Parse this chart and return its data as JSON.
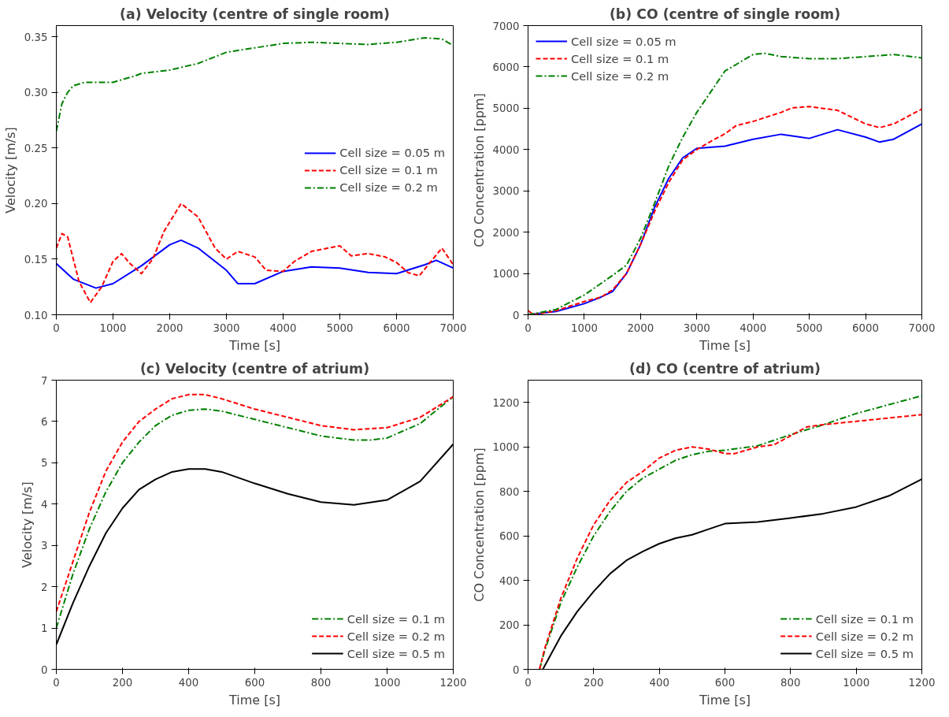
{
  "chart_data": [
    {
      "type": "line",
      "title": "(a) Velocity (centre of single room)",
      "xlabel": "Time [s]",
      "ylabel": "Velocity [m/s]",
      "xlim": [
        0,
        7000
      ],
      "ylim": [
        0.1,
        0.36
      ],
      "xticks": [
        0,
        1000,
        2000,
        3000,
        4000,
        5000,
        6000,
        7000
      ],
      "yticks": [
        {
          "value": 0.1,
          "label": "0.10"
        },
        {
          "value": 0.15,
          "label": "0.15"
        },
        {
          "value": 0.2,
          "label": "0.20"
        },
        {
          "value": 0.25,
          "label": "0.25"
        },
        {
          "value": 0.3,
          "label": "0.30"
        },
        {
          "value": 0.35,
          "label": "0.35"
        }
      ],
      "grid": false,
      "legend": "right",
      "marker": "none",
      "series": [
        {
          "name": "Cell size = 0.05 m",
          "color": "#0000ff",
          "line_style": "solid",
          "x": [
            0,
            300,
            700,
            1000,
            1500,
            2000,
            2200,
            2500,
            3000,
            3200,
            3500,
            4000,
            4500,
            5000,
            5500,
            6000,
            6500,
            6700,
            7000
          ],
          "values": [
            0.146,
            0.132,
            0.124,
            0.128,
            0.144,
            0.163,
            0.167,
            0.16,
            0.14,
            0.128,
            0.128,
            0.139,
            0.143,
            0.142,
            0.138,
            0.137,
            0.145,
            0.149,
            0.142
          ]
        },
        {
          "name": "Cell size = 0.1 m",
          "color": "#ff0000",
          "line_style": "dashed",
          "x": [
            0,
            100,
            200,
            400,
            600,
            800,
            1000,
            1150,
            1300,
            1500,
            1700,
            1900,
            2200,
            2500,
            2800,
            3000,
            3200,
            3500,
            3700,
            4000,
            4200,
            4500,
            5000,
            5200,
            5500,
            5800,
            6000,
            6200,
            6400,
            6800,
            7000
          ],
          "values": [
            0.16,
            0.173,
            0.17,
            0.13,
            0.111,
            0.125,
            0.148,
            0.155,
            0.146,
            0.137,
            0.15,
            0.175,
            0.2,
            0.188,
            0.16,
            0.15,
            0.157,
            0.152,
            0.14,
            0.139,
            0.148,
            0.157,
            0.162,
            0.153,
            0.155,
            0.152,
            0.147,
            0.138,
            0.135,
            0.16,
            0.145
          ]
        },
        {
          "name": "Cell size = 0.2 m",
          "color": "#008000",
          "line_style": "dashdot",
          "x": [
            0,
            100,
            200,
            300,
            500,
            1000,
            1400,
            1500,
            2000,
            2500,
            3000,
            3500,
            4000,
            4500,
            5000,
            5500,
            6000,
            6500,
            6800,
            7000
          ],
          "values": [
            0.265,
            0.29,
            0.3,
            0.306,
            0.309,
            0.309,
            0.315,
            0.317,
            0.32,
            0.326,
            0.336,
            0.34,
            0.344,
            0.345,
            0.344,
            0.343,
            0.345,
            0.349,
            0.348,
            0.342
          ]
        }
      ]
    },
    {
      "type": "line",
      "title": "(b) CO (centre of single room)",
      "xlabel": "Time [s]",
      "ylabel": "CO Concentration [ppm]",
      "xlim": [
        0,
        7000
      ],
      "ylim": [
        0,
        7000
      ],
      "xticks": [
        0,
        1000,
        2000,
        3000,
        4000,
        5000,
        6000,
        7000
      ],
      "yticks": [
        0,
        1000,
        2000,
        3000,
        4000,
        5000,
        6000,
        7000
      ],
      "grid": false,
      "legend": "top left",
      "marker": "none",
      "series": [
        {
          "name": "Cell size = 0.05 m",
          "color": "#0000ff",
          "line_style": "solid",
          "x": [
            0,
            500,
            1000,
            1300,
            1500,
            1750,
            2000,
            2250,
            2500,
            2750,
            3000,
            3500,
            4000,
            4500,
            5000,
            5500,
            6000,
            6250,
            6500,
            7000
          ],
          "values": [
            0,
            80,
            270,
            430,
            560,
            1000,
            1700,
            2600,
            3300,
            3800,
            4030,
            4080,
            4250,
            4370,
            4270,
            4480,
            4300,
            4180,
            4250,
            4620
          ]
        },
        {
          "name": "Cell size = 0.1 m",
          "color": "#ff0000",
          "line_style": "dashed",
          "x": [
            0,
            100,
            500,
            1000,
            1300,
            1500,
            1750,
            2000,
            2250,
            2500,
            2750,
            3000,
            3250,
            3500,
            3700,
            4000,
            4500,
            4700,
            5000,
            5500,
            6000,
            6250,
            6500,
            7000
          ],
          "values": [
            100,
            0,
            100,
            320,
            430,
            600,
            1000,
            1700,
            2500,
            3200,
            3750,
            4000,
            4200,
            4380,
            4580,
            4680,
            4900,
            5010,
            5040,
            4950,
            4620,
            4530,
            4620,
            4980
          ]
        },
        {
          "name": "Cell size = 0.2 m",
          "color": "#008000",
          "line_style": "dashdot",
          "x": [
            0,
            500,
            1000,
            1500,
            1750,
            2000,
            2250,
            2500,
            2750,
            3000,
            3500,
            4000,
            4200,
            4500,
            5000,
            5500,
            6000,
            6500,
            7000
          ],
          "values": [
            0,
            130,
            480,
            950,
            1200,
            1850,
            2700,
            3600,
            4300,
            4900,
            5900,
            6300,
            6330,
            6250,
            6200,
            6200,
            6250,
            6300,
            6220
          ]
        }
      ]
    },
    {
      "type": "line",
      "title": "(c) Velocity (centre of atrium)",
      "xlabel": "Time [s]",
      "ylabel": "Velocity [m/s]",
      "xlim": [
        0,
        1200
      ],
      "ylim": [
        0,
        7
      ],
      "xticks": [
        0,
        200,
        400,
        600,
        800,
        1000,
        1200
      ],
      "yticks": [
        0,
        1,
        2,
        3,
        4,
        5,
        6,
        7
      ],
      "grid": false,
      "legend": "bottom right",
      "marker": "none",
      "series": [
        {
          "name": "Cell size = 0.1 m",
          "color": "#008000",
          "line_style": "dashdot",
          "x": [
            0,
            50,
            100,
            150,
            200,
            250,
            300,
            350,
            400,
            450,
            500,
            600,
            700,
            800,
            900,
            950,
            1000,
            1100,
            1200
          ],
          "values": [
            1.0,
            2.3,
            3.4,
            4.3,
            5.0,
            5.5,
            5.9,
            6.15,
            6.27,
            6.3,
            6.25,
            6.05,
            5.85,
            5.65,
            5.55,
            5.55,
            5.6,
            5.95,
            6.6
          ]
        },
        {
          "name": "Cell size = 0.2 m",
          "color": "#ff0000",
          "line_style": "dashed",
          "x": [
            0,
            50,
            100,
            150,
            200,
            250,
            300,
            350,
            400,
            450,
            500,
            600,
            700,
            800,
            900,
            1000,
            1100,
            1200
          ],
          "values": [
            1.4,
            2.6,
            3.8,
            4.8,
            5.5,
            6.0,
            6.3,
            6.55,
            6.65,
            6.65,
            6.55,
            6.3,
            6.1,
            5.9,
            5.8,
            5.85,
            6.1,
            6.6
          ]
        },
        {
          "name": "Cell size = 0.5 m",
          "color": "#000000",
          "line_style": "solid",
          "x": [
            0,
            50,
            100,
            150,
            200,
            250,
            300,
            350,
            400,
            450,
            500,
            600,
            700,
            800,
            900,
            1000,
            1100,
            1200
          ],
          "values": [
            0.6,
            1.6,
            2.5,
            3.3,
            3.9,
            4.35,
            4.6,
            4.78,
            4.85,
            4.85,
            4.78,
            4.5,
            4.25,
            4.05,
            3.98,
            4.1,
            4.55,
            5.45
          ]
        }
      ]
    },
    {
      "type": "line",
      "title": "(d) CO (centre of atrium)",
      "xlabel": "Time [s]",
      "ylabel": "CO Concentration [ppm]",
      "xlim": [
        0,
        1200
      ],
      "ylim": [
        0,
        1300
      ],
      "xticks": [
        0,
        200,
        400,
        600,
        800,
        1000,
        1200
      ],
      "yticks": [
        0,
        200,
        400,
        600,
        800,
        1000,
        1200
      ],
      "grid": false,
      "legend": "bottom right",
      "marker": "none",
      "series": [
        {
          "name": "Cell size = 0.1 m",
          "color": "#008000",
          "line_style": "dashdot",
          "x": [
            35,
            50,
            100,
            150,
            200,
            250,
            300,
            350,
            400,
            450,
            500,
            550,
            600,
            700,
            800,
            900,
            1000,
            1100,
            1200
          ],
          "values": [
            0,
            80,
            300,
            460,
            600,
            710,
            800,
            860,
            900,
            940,
            965,
            980,
            985,
            1005,
            1055,
            1100,
            1150,
            1190,
            1230
          ]
        },
        {
          "name": "Cell size = 0.2 m",
          "color": "#ff0000",
          "line_style": "dashed",
          "x": [
            35,
            50,
            100,
            150,
            200,
            250,
            300,
            350,
            400,
            450,
            500,
            550,
            600,
            630,
            700,
            750,
            800,
            850,
            900,
            1000,
            1100,
            1200
          ],
          "values": [
            0,
            90,
            320,
            500,
            650,
            760,
            840,
            890,
            950,
            985,
            1000,
            990,
            970,
            970,
            1000,
            1010,
            1050,
            1090,
            1100,
            1115,
            1130,
            1145
          ]
        },
        {
          "name": "Cell size = 0.5 m",
          "color": "#000000",
          "line_style": "solid",
          "x": [
            45,
            100,
            150,
            200,
            250,
            300,
            350,
            400,
            450,
            500,
            550,
            600,
            700,
            800,
            900,
            1000,
            1100,
            1200
          ],
          "values": [
            0,
            150,
            260,
            350,
            430,
            490,
            530,
            565,
            590,
            605,
            630,
            655,
            662,
            680,
            700,
            730,
            780,
            855
          ]
        }
      ]
    }
  ]
}
